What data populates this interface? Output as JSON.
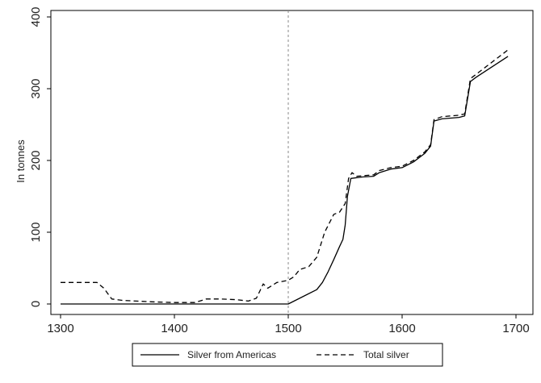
{
  "chart_data": {
    "type": "line",
    "title": "",
    "xlabel": "",
    "ylabel": "In tonnes",
    "xlim": [
      1300,
      1700
    ],
    "ylim": [
      0,
      400
    ],
    "xticks": [
      1300,
      1400,
      1500,
      1600,
      1700
    ],
    "yticks": [
      0,
      100,
      200,
      300,
      400
    ],
    "grid": false,
    "legend_position": "bottom",
    "reference_lines": [
      {
        "axis": "x",
        "value": 1500,
        "style": "dashed"
      }
    ],
    "series": [
      {
        "name": "Silver from Americas",
        "style": "solid",
        "color": "#000000",
        "points": [
          [
            1300,
            0
          ],
          [
            1500,
            0
          ],
          [
            1525,
            20
          ],
          [
            1530,
            30
          ],
          [
            1535,
            45
          ],
          [
            1540,
            62
          ],
          [
            1545,
            80
          ],
          [
            1548,
            90
          ],
          [
            1550,
            110
          ],
          [
            1552,
            150
          ],
          [
            1555,
            175
          ],
          [
            1565,
            177
          ],
          [
            1575,
            178
          ],
          [
            1580,
            183
          ],
          [
            1590,
            188
          ],
          [
            1600,
            190
          ],
          [
            1610,
            198
          ],
          [
            1620,
            210
          ],
          [
            1625,
            220
          ],
          [
            1628,
            255
          ],
          [
            1635,
            258
          ],
          [
            1650,
            260
          ],
          [
            1655,
            262
          ],
          [
            1660,
            310
          ],
          [
            1665,
            316
          ],
          [
            1693,
            345
          ]
        ]
      },
      {
        "name": "Total silver",
        "style": "dashed",
        "color": "#000000",
        "points": [
          [
            1300,
            30
          ],
          [
            1332,
            30
          ],
          [
            1338,
            22
          ],
          [
            1345,
            7
          ],
          [
            1355,
            5
          ],
          [
            1380,
            3
          ],
          [
            1400,
            2
          ],
          [
            1418,
            2
          ],
          [
            1428,
            7
          ],
          [
            1440,
            7
          ],
          [
            1455,
            6
          ],
          [
            1465,
            4
          ],
          [
            1472,
            8
          ],
          [
            1475,
            18
          ],
          [
            1478,
            28
          ],
          [
            1482,
            22
          ],
          [
            1490,
            30
          ],
          [
            1500,
            33
          ],
          [
            1505,
            38
          ],
          [
            1510,
            48
          ],
          [
            1518,
            52
          ],
          [
            1525,
            65
          ],
          [
            1532,
            100
          ],
          [
            1540,
            125
          ],
          [
            1545,
            128
          ],
          [
            1550,
            140
          ],
          [
            1553,
            175
          ],
          [
            1556,
            183
          ],
          [
            1560,
            178
          ],
          [
            1575,
            180
          ],
          [
            1580,
            186
          ],
          [
            1590,
            190
          ],
          [
            1600,
            192
          ],
          [
            1610,
            200
          ],
          [
            1620,
            212
          ],
          [
            1625,
            222
          ],
          [
            1628,
            257
          ],
          [
            1635,
            261
          ],
          [
            1650,
            263
          ],
          [
            1655,
            265
          ],
          [
            1660,
            314
          ],
          [
            1665,
            320
          ],
          [
            1693,
            354
          ]
        ]
      }
    ]
  }
}
